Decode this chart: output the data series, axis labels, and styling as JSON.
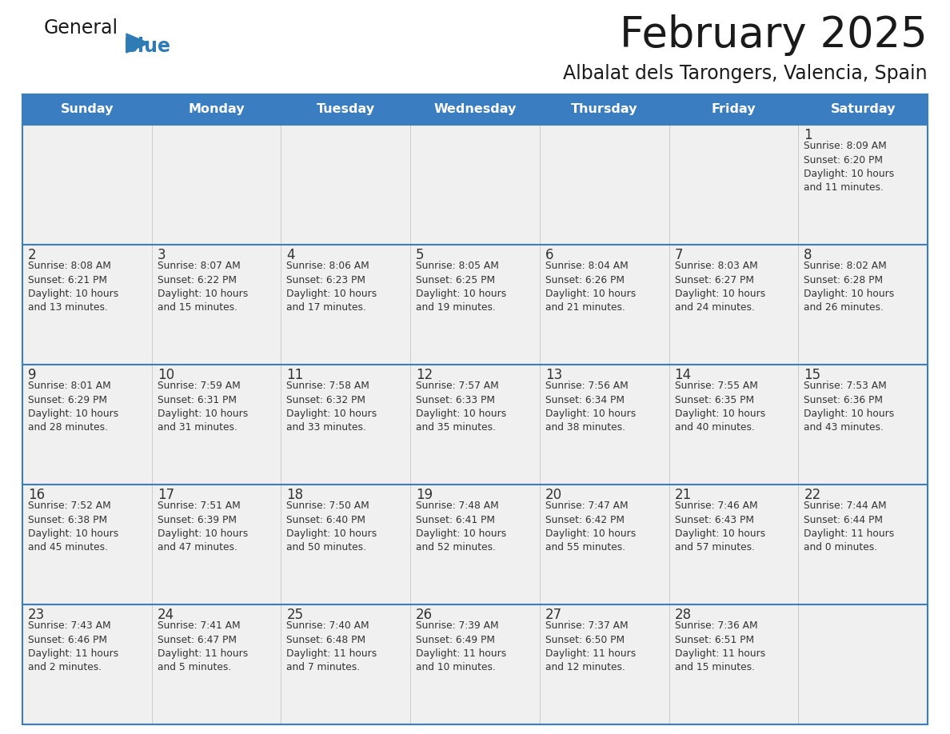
{
  "title": "February 2025",
  "subtitle": "Albalat dels Tarongers, Valencia, Spain",
  "header_bg": "#3A7DC0",
  "header_text_color": "#FFFFFF",
  "cell_bg": "#F0F0F0",
  "border_color": "#3A7DC0",
  "text_color": "#333333",
  "day_headers": [
    "Sunday",
    "Monday",
    "Tuesday",
    "Wednesday",
    "Thursday",
    "Friday",
    "Saturday"
  ],
  "calendar_data": [
    [
      null,
      null,
      null,
      null,
      null,
      null,
      {
        "day": "1",
        "sunrise": "Sunrise: 8:09 AM",
        "sunset": "Sunset: 6:20 PM",
        "daylight": "Daylight: 10 hours\nand 11 minutes."
      }
    ],
    [
      {
        "day": "2",
        "sunrise": "Sunrise: 8:08 AM",
        "sunset": "Sunset: 6:21 PM",
        "daylight": "Daylight: 10 hours\nand 13 minutes."
      },
      {
        "day": "3",
        "sunrise": "Sunrise: 8:07 AM",
        "sunset": "Sunset: 6:22 PM",
        "daylight": "Daylight: 10 hours\nand 15 minutes."
      },
      {
        "day": "4",
        "sunrise": "Sunrise: 8:06 AM",
        "sunset": "Sunset: 6:23 PM",
        "daylight": "Daylight: 10 hours\nand 17 minutes."
      },
      {
        "day": "5",
        "sunrise": "Sunrise: 8:05 AM",
        "sunset": "Sunset: 6:25 PM",
        "daylight": "Daylight: 10 hours\nand 19 minutes."
      },
      {
        "day": "6",
        "sunrise": "Sunrise: 8:04 AM",
        "sunset": "Sunset: 6:26 PM",
        "daylight": "Daylight: 10 hours\nand 21 minutes."
      },
      {
        "day": "7",
        "sunrise": "Sunrise: 8:03 AM",
        "sunset": "Sunset: 6:27 PM",
        "daylight": "Daylight: 10 hours\nand 24 minutes."
      },
      {
        "day": "8",
        "sunrise": "Sunrise: 8:02 AM",
        "sunset": "Sunset: 6:28 PM",
        "daylight": "Daylight: 10 hours\nand 26 minutes."
      }
    ],
    [
      {
        "day": "9",
        "sunrise": "Sunrise: 8:01 AM",
        "sunset": "Sunset: 6:29 PM",
        "daylight": "Daylight: 10 hours\nand 28 minutes."
      },
      {
        "day": "10",
        "sunrise": "Sunrise: 7:59 AM",
        "sunset": "Sunset: 6:31 PM",
        "daylight": "Daylight: 10 hours\nand 31 minutes."
      },
      {
        "day": "11",
        "sunrise": "Sunrise: 7:58 AM",
        "sunset": "Sunset: 6:32 PM",
        "daylight": "Daylight: 10 hours\nand 33 minutes."
      },
      {
        "day": "12",
        "sunrise": "Sunrise: 7:57 AM",
        "sunset": "Sunset: 6:33 PM",
        "daylight": "Daylight: 10 hours\nand 35 minutes."
      },
      {
        "day": "13",
        "sunrise": "Sunrise: 7:56 AM",
        "sunset": "Sunset: 6:34 PM",
        "daylight": "Daylight: 10 hours\nand 38 minutes."
      },
      {
        "day": "14",
        "sunrise": "Sunrise: 7:55 AM",
        "sunset": "Sunset: 6:35 PM",
        "daylight": "Daylight: 10 hours\nand 40 minutes."
      },
      {
        "day": "15",
        "sunrise": "Sunrise: 7:53 AM",
        "sunset": "Sunset: 6:36 PM",
        "daylight": "Daylight: 10 hours\nand 43 minutes."
      }
    ],
    [
      {
        "day": "16",
        "sunrise": "Sunrise: 7:52 AM",
        "sunset": "Sunset: 6:38 PM",
        "daylight": "Daylight: 10 hours\nand 45 minutes."
      },
      {
        "day": "17",
        "sunrise": "Sunrise: 7:51 AM",
        "sunset": "Sunset: 6:39 PM",
        "daylight": "Daylight: 10 hours\nand 47 minutes."
      },
      {
        "day": "18",
        "sunrise": "Sunrise: 7:50 AM",
        "sunset": "Sunset: 6:40 PM",
        "daylight": "Daylight: 10 hours\nand 50 minutes."
      },
      {
        "day": "19",
        "sunrise": "Sunrise: 7:48 AM",
        "sunset": "Sunset: 6:41 PM",
        "daylight": "Daylight: 10 hours\nand 52 minutes."
      },
      {
        "day": "20",
        "sunrise": "Sunrise: 7:47 AM",
        "sunset": "Sunset: 6:42 PM",
        "daylight": "Daylight: 10 hours\nand 55 minutes."
      },
      {
        "day": "21",
        "sunrise": "Sunrise: 7:46 AM",
        "sunset": "Sunset: 6:43 PM",
        "daylight": "Daylight: 10 hours\nand 57 minutes."
      },
      {
        "day": "22",
        "sunrise": "Sunrise: 7:44 AM",
        "sunset": "Sunset: 6:44 PM",
        "daylight": "Daylight: 11 hours\nand 0 minutes."
      }
    ],
    [
      {
        "day": "23",
        "sunrise": "Sunrise: 7:43 AM",
        "sunset": "Sunset: 6:46 PM",
        "daylight": "Daylight: 11 hours\nand 2 minutes."
      },
      {
        "day": "24",
        "sunrise": "Sunrise: 7:41 AM",
        "sunset": "Sunset: 6:47 PM",
        "daylight": "Daylight: 11 hours\nand 5 minutes."
      },
      {
        "day": "25",
        "sunrise": "Sunrise: 7:40 AM",
        "sunset": "Sunset: 6:48 PM",
        "daylight": "Daylight: 11 hours\nand 7 minutes."
      },
      {
        "day": "26",
        "sunrise": "Sunrise: 7:39 AM",
        "sunset": "Sunset: 6:49 PM",
        "daylight": "Daylight: 11 hours\nand 10 minutes."
      },
      {
        "day": "27",
        "sunrise": "Sunrise: 7:37 AM",
        "sunset": "Sunset: 6:50 PM",
        "daylight": "Daylight: 11 hours\nand 12 minutes."
      },
      {
        "day": "28",
        "sunrise": "Sunrise: 7:36 AM",
        "sunset": "Sunset: 6:51 PM",
        "daylight": "Daylight: 11 hours\nand 15 minutes."
      },
      null
    ]
  ],
  "logo_color_general": "#1a1a1a",
  "logo_color_blue": "#2E7BB5",
  "logo_triangle_color": "#2E7BB5",
  "fig_width": 11.88,
  "fig_height": 9.18,
  "dpi": 100
}
